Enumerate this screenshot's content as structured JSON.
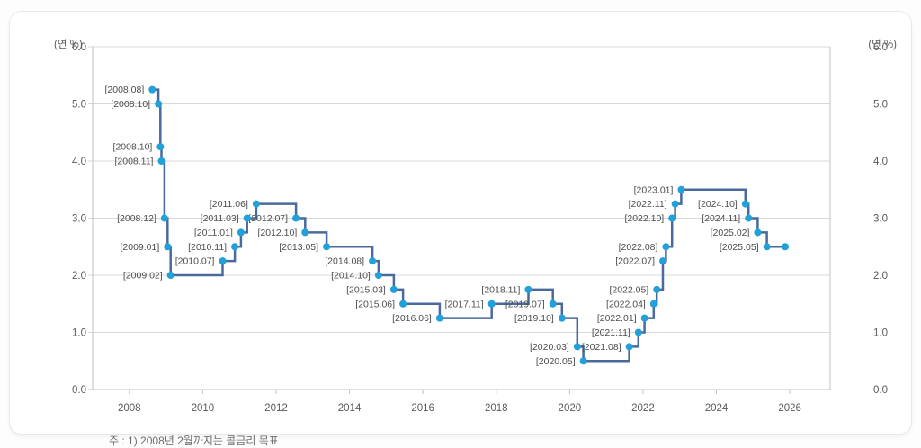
{
  "card": {
    "background": "#ffffff",
    "border_color": "#e8e8ec"
  },
  "chart_data": {
    "type": "line",
    "subtype": "step-after",
    "title": "",
    "unit_label_left": "(연 %)",
    "unit_label_right": "(연 %)",
    "note": "주 : 1) 2008년 2월까지는 콜금리 목표",
    "grid": true,
    "xlim": [
      2007,
      2027.1
    ],
    "ylim": [
      0,
      6
    ],
    "y_tick_step": 1.0,
    "x_ticks": [
      2008,
      2010,
      2012,
      2014,
      2016,
      2018,
      2020,
      2022,
      2024,
      2026
    ],
    "points": [
      {
        "label": "[2008.08]",
        "date": "2008.08",
        "rate": 5.25
      },
      {
        "label": "[2008.10]",
        "date": "2008.10",
        "rate": 5.0
      },
      {
        "label": "[2008.10]",
        "date": "2008.10",
        "rate": 4.25
      },
      {
        "label": "[2008.11]",
        "date": "2008.11",
        "rate": 4.0
      },
      {
        "label": "[2008.12]",
        "date": "2008.12",
        "rate": 3.0
      },
      {
        "label": "[2009.01]",
        "date": "2009.01",
        "rate": 2.5
      },
      {
        "label": "[2009.02]",
        "date": "2009.02",
        "rate": 2.0
      },
      {
        "label": "[2010.07]",
        "date": "2010.07",
        "rate": 2.25
      },
      {
        "label": "[2010.11]",
        "date": "2010.11",
        "rate": 2.5
      },
      {
        "label": "[2011.01]",
        "date": "2011.01",
        "rate": 2.75
      },
      {
        "label": "[2011.03]",
        "date": "2011.03",
        "rate": 3.0
      },
      {
        "label": "[2011.06]",
        "date": "2011.06",
        "rate": 3.25
      },
      {
        "label": "[2012.07]",
        "date": "2012.07",
        "rate": 3.0
      },
      {
        "label": "[2012.10]",
        "date": "2012.10",
        "rate": 2.75
      },
      {
        "label": "[2013.05]",
        "date": "2013.05",
        "rate": 2.5
      },
      {
        "label": "[2014.08]",
        "date": "2014.08",
        "rate": 2.25
      },
      {
        "label": "[2014.10]",
        "date": "2014.10",
        "rate": 2.0
      },
      {
        "label": "[2015.03]",
        "date": "2015.03",
        "rate": 1.75
      },
      {
        "label": "[2015.06]",
        "date": "2015.06",
        "rate": 1.5
      },
      {
        "label": "[2016.06]",
        "date": "2016.06",
        "rate": 1.25
      },
      {
        "label": "[2017.11]",
        "date": "2017.11",
        "rate": 1.5
      },
      {
        "label": "[2018.11]",
        "date": "2018.11",
        "rate": 1.75
      },
      {
        "label": "[2019.07]",
        "date": "2019.07",
        "rate": 1.5
      },
      {
        "label": "[2019.10]",
        "date": "2019.10",
        "rate": 1.25
      },
      {
        "label": "[2020.03]",
        "date": "2020.03",
        "rate": 0.75
      },
      {
        "label": "[2020.05]",
        "date": "2020.05",
        "rate": 0.5
      },
      {
        "label": "[2021.08]",
        "date": "2021.08",
        "rate": 0.75
      },
      {
        "label": "[2021.11]",
        "date": "2021.11",
        "rate": 1.0
      },
      {
        "label": "[2022.01]",
        "date": "2022.01",
        "rate": 1.25
      },
      {
        "label": "[2022.04]",
        "date": "2022.04",
        "rate": 1.5
      },
      {
        "label": "[2022.05]",
        "date": "2022.05",
        "rate": 1.75
      },
      {
        "label": "[2022.07]",
        "date": "2022.07",
        "rate": 2.25
      },
      {
        "label": "[2022.08]",
        "date": "2022.08",
        "rate": 2.5
      },
      {
        "label": "[2022.10]",
        "date": "2022.10",
        "rate": 3.0
      },
      {
        "label": "[2022.11]",
        "date": "2022.11",
        "rate": 3.25
      },
      {
        "label": "[2023.01]",
        "date": "2023.01",
        "rate": 3.5
      },
      {
        "label": "[2024.10]",
        "date": "2024.10",
        "rate": 3.25
      },
      {
        "label": "[2024.11]",
        "date": "2024.11",
        "rate": 3.0
      },
      {
        "label": "[2025.02]",
        "date": "2025.02",
        "rate": 2.75
      },
      {
        "label": "[2025.05]",
        "date": "2025.05",
        "rate": 2.5
      }
    ],
    "line_end": {
      "date": "2025.11",
      "rate": 2.5
    },
    "colors": {
      "line": "#4a6a9e",
      "marker": "#22a0d9",
      "grid": "#d8d8d8",
      "axis": "#c2c2c6",
      "tick_label": "#595959",
      "point_label": "#4d4d4d",
      "note": "#6e6e6e"
    }
  }
}
